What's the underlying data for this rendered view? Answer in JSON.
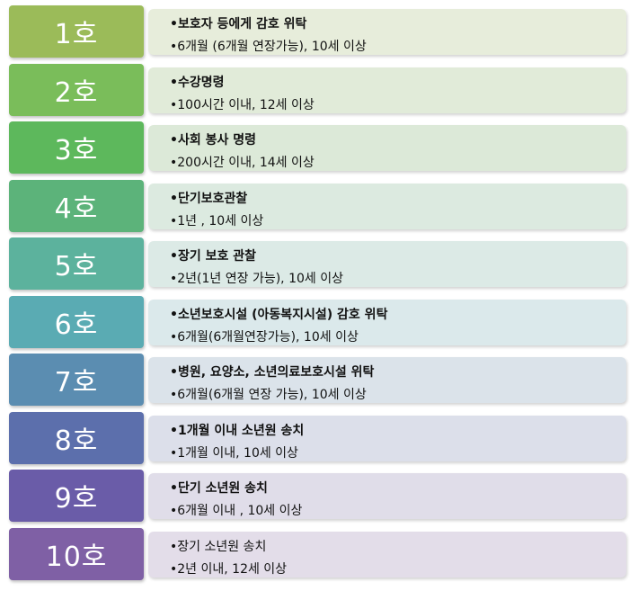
{
  "items": [
    {
      "tag": "1호",
      "color": "#9bbb59",
      "bg": "#e7eddb",
      "line1": "•보호자 등에게 감호 위탁",
      "line2": "•6개월 (6개월 연장가능), 10세 이상"
    },
    {
      "tag": "2호",
      "color": "#7abd5a",
      "bg": "#e1ebd9",
      "line1": "•수강명령",
      "line2": "•100시간 이내, 12세 이상"
    },
    {
      "tag": "3호",
      "color": "#5db85c",
      "bg": "#dce9d8",
      "line1": "•사회 봉사 명령",
      "line2": "•200시간 이내, 14세 이상"
    },
    {
      "tag": "4호",
      "color": "#5cb37a",
      "bg": "#dceae0",
      "line1": "•단기보호관찰",
      "line2": "•1년 , 10세 이상"
    },
    {
      "tag": "5호",
      "color": "#5cb29d",
      "bg": "#dceae6",
      "line1": "•장기 보호 관찰",
      "line2": "•2년(1년 연장 가능), 10세 이상"
    },
    {
      "tag": "6호",
      "color": "#5aabb3",
      "bg": "#dbe9eb",
      "line1": "•소년보호시설 (아동복지시설) 감호 위탁",
      "line2": "•6개월(6개월연장가능), 10세 이상"
    },
    {
      "tag": "7호",
      "color": "#5b8db1",
      "bg": "#dbe3ea",
      "line1": "•병원, 요양소, 소년의료보호시설 위탁",
      "line2": "•6개월(6개월 연장 가능), 10세 이상"
    },
    {
      "tag": "8호",
      "color": "#5c6fac",
      "bg": "#dcdfea",
      "line1": "•1개월 이내 소년원 송치",
      "line2": "•1개월 이내, 10세 이상"
    },
    {
      "tag": "9호",
      "color": "#6a5ca8",
      "bg": "#e0dde9",
      "line1": "•단기 소년원 송치",
      "line2": "•6개월 이내 , 10세 이상"
    },
    {
      "tag": "10호",
      "color": "#7f60a5",
      "bg": "#e3dde9",
      "line1": "•장기 소년원 송치",
      "line2": "•2년 이내, 12세 이상"
    }
  ]
}
